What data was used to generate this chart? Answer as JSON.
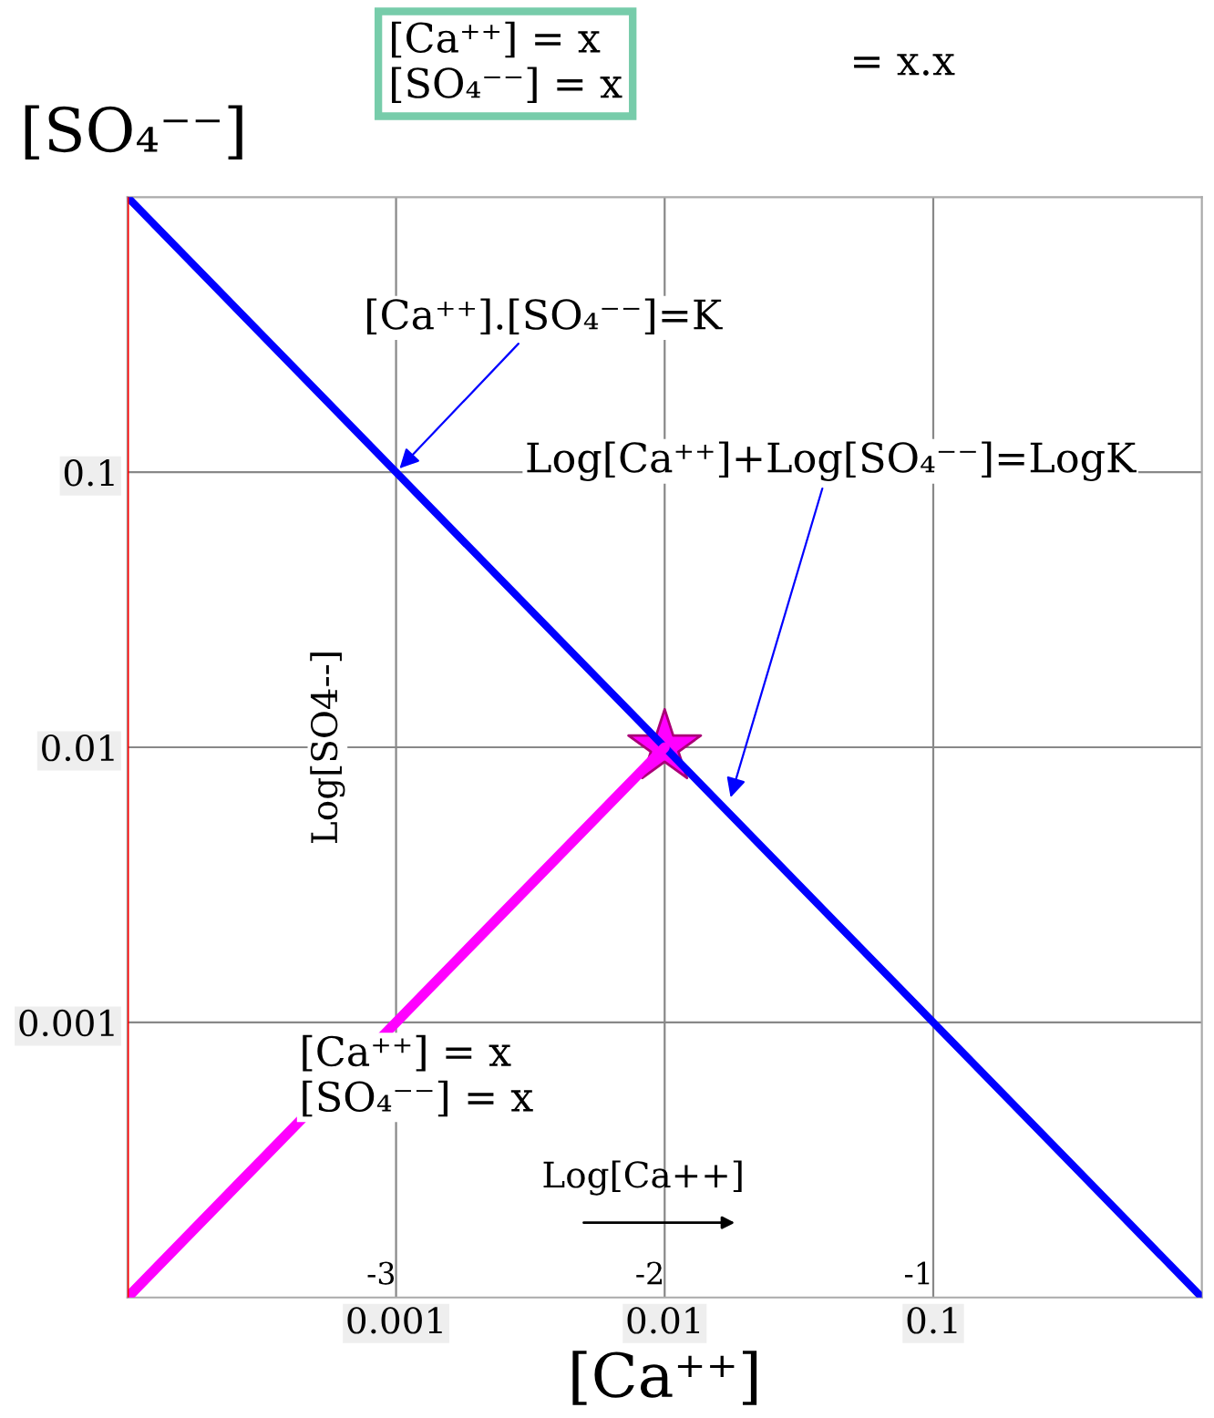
{
  "chart_data": {
    "type": "line",
    "xlabel": "[Ca⁺⁺]",
    "ylabel": "[SO₄⁻⁻]",
    "log": "xy",
    "xlim": [
      0.0001,
      1
    ],
    "ylim": [
      0.0001,
      1
    ],
    "xticks": [
      {
        "value": 0.001,
        "label": "0.001"
      },
      {
        "value": 0.01,
        "label": "0.01"
      },
      {
        "value": 0.1,
        "label": "0.1"
      }
    ],
    "yticks": [
      {
        "value": 0.001,
        "label": "0.001"
      },
      {
        "value": 0.01,
        "label": "0.01"
      },
      {
        "value": 0.1,
        "label": "0.1"
      }
    ],
    "grid": true,
    "legend": false,
    "series": [
      {
        "color": "#0000ff",
        "x": [
          0.0001,
          1
        ],
        "values": [
          1,
          0.0001
        ]
      },
      {
        "color": "#ff00ff",
        "x": [
          0.0001,
          0.01
        ],
        "values": [
          0.0001,
          0.01
        ]
      },
      {
        "type": "scatter",
        "color": "#ff00ff",
        "marker": "star",
        "x": [
          0.01
        ],
        "values": [
          0.01
        ]
      }
    ],
    "ref_lines": [
      {
        "axis": "x",
        "value": 0.0001,
        "color": "#ff0000"
      }
    ],
    "annotations": [
      {
        "text": "[Ca⁺⁺].[SO₄⁻⁻]=K",
        "x": 0.001,
        "y": 0.1
      },
      "Log[Ca⁺⁺]+Log[SO₄⁻⁻]=LogK",
      "[Ca⁺⁺] = x\n[SO₄⁻⁻] = x",
      "Log[SO4--]",
      "[Ca⁺⁺] = x\n[SO₄⁻⁻] = x",
      "= x.x",
      "Log[Ca++]",
      "-3",
      "-2",
      "-1"
    ]
  }
}
